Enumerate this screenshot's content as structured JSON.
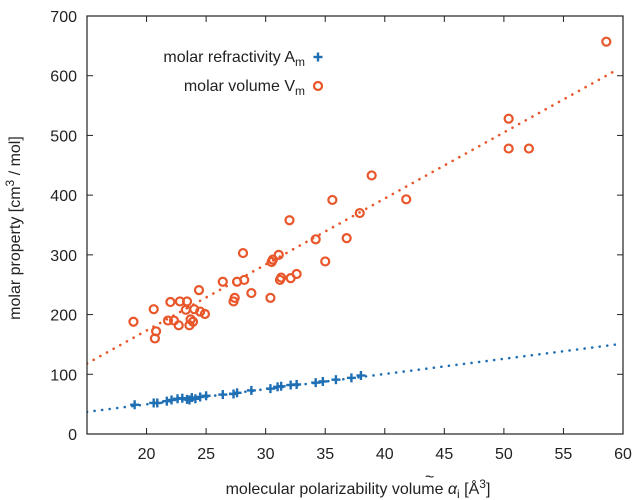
{
  "chart_data": {
    "type": "scatter",
    "title": "",
    "xlabel": "molecular polarizability volume α̃ᵢ [Å³]",
    "ylabel": "molar property [cm³ / mol]",
    "xlim": [
      15,
      60
    ],
    "ylim": [
      0,
      700
    ],
    "xticks": [
      20,
      25,
      30,
      35,
      40,
      45,
      50,
      55,
      60
    ],
    "yticks": [
      0,
      100,
      200,
      300,
      400,
      500,
      600,
      700
    ],
    "grid": false,
    "legend_position": "top-left",
    "series": [
      {
        "name": "molar refractivity A_m",
        "marker": "plus",
        "color": "#1f6fb4",
        "points": [
          [
            19.0,
            49
          ],
          [
            20.6,
            52
          ],
          [
            20.9,
            52
          ],
          [
            21.7,
            55
          ],
          [
            22.1,
            57
          ],
          [
            22.6,
            59
          ],
          [
            23.0,
            60
          ],
          [
            23.4,
            58
          ],
          [
            23.6,
            57
          ],
          [
            23.8,
            61
          ],
          [
            24.1,
            59
          ],
          [
            24.5,
            62
          ],
          [
            25.0,
            64
          ],
          [
            26.4,
            66
          ],
          [
            27.3,
            67
          ],
          [
            27.6,
            69
          ],
          [
            28.8,
            73
          ],
          [
            30.4,
            76
          ],
          [
            31.0,
            79
          ],
          [
            31.3,
            80
          ],
          [
            32.1,
            82
          ],
          [
            32.6,
            83
          ],
          [
            34.2,
            86
          ],
          [
            34.8,
            88
          ],
          [
            35.9,
            91
          ],
          [
            37.2,
            94
          ],
          [
            38.0,
            98
          ]
        ],
        "fit": {
          "x": [
            15,
            59.5
          ],
          "y": [
            37,
            150
          ],
          "style": "dotted"
        }
      },
      {
        "name": "molar volume V_m",
        "marker": "circle",
        "color": "#e8562a",
        "points": [
          [
            18.9,
            188
          ],
          [
            20.6,
            209
          ],
          [
            20.7,
            160
          ],
          [
            20.8,
            172
          ],
          [
            21.8,
            190
          ],
          [
            22.0,
            221
          ],
          [
            22.3,
            190
          ],
          [
            22.7,
            182
          ],
          [
            22.8,
            222
          ],
          [
            23.3,
            208
          ],
          [
            23.4,
            222
          ],
          [
            23.6,
            182
          ],
          [
            23.7,
            192
          ],
          [
            23.9,
            188
          ],
          [
            24.0,
            209
          ],
          [
            24.4,
            241
          ],
          [
            24.5,
            205
          ],
          [
            24.9,
            201
          ],
          [
            26.4,
            255
          ],
          [
            27.3,
            222
          ],
          [
            27.4,
            228
          ],
          [
            27.6,
            255
          ],
          [
            28.1,
            303
          ],
          [
            28.2,
            258
          ],
          [
            28.8,
            236
          ],
          [
            30.4,
            228
          ],
          [
            30.5,
            288
          ],
          [
            30.6,
            292
          ],
          [
            31.1,
            300
          ],
          [
            31.2,
            258
          ],
          [
            31.3,
            262
          ],
          [
            32.0,
            358
          ],
          [
            32.1,
            261
          ],
          [
            32.6,
            268
          ],
          [
            34.2,
            326
          ],
          [
            35.0,
            289
          ],
          [
            35.6,
            392
          ],
          [
            36.8,
            328
          ],
          [
            37.9,
            370
          ],
          [
            38.9,
            433
          ],
          [
            41.8,
            393
          ],
          [
            50.4,
            528
          ],
          [
            50.4,
            478
          ],
          [
            52.1,
            478
          ],
          [
            58.6,
            657
          ]
        ],
        "fit": {
          "x": [
            15,
            59.5
          ],
          "y": [
            118,
            610
          ],
          "style": "dotted"
        }
      }
    ]
  },
  "legend": {
    "item1": {
      "label": "molar refractivity A",
      "sub": "m"
    },
    "item2": {
      "label": "molar volume V",
      "sub": "m"
    }
  },
  "axes": {
    "x_label_main": "molecular polarizability volume ",
    "x_label_symbol": "α",
    "x_label_sub": "i",
    "x_label_unit": " [Å",
    "x_label_sup": "3",
    "x_label_end": "]",
    "y_label_main": "molar property [cm",
    "y_label_sup": "3",
    "y_label_end": " / mol]"
  },
  "colors": {
    "refractivity": "#1f6fb4",
    "volume": "#e8562a",
    "axis": "#222222"
  }
}
